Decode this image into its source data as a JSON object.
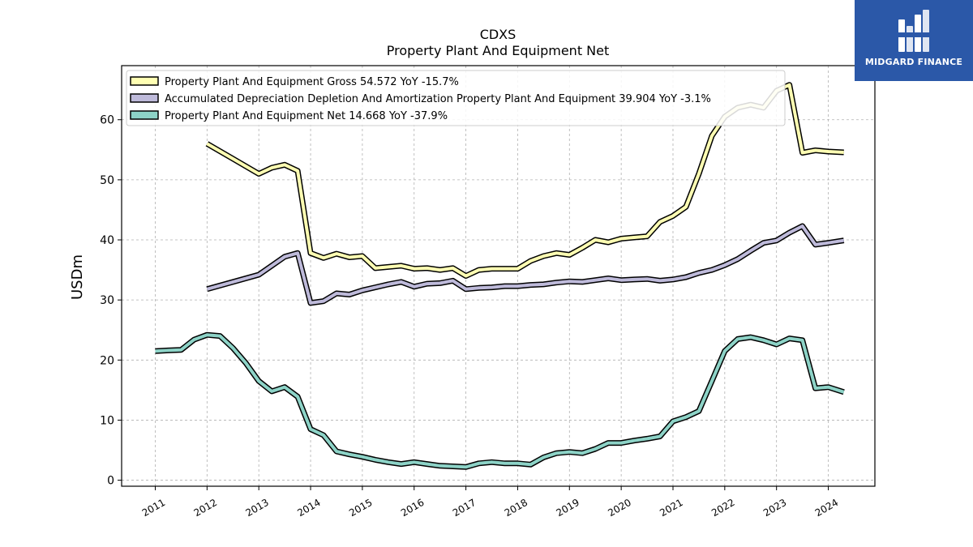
{
  "brand": {
    "name": "MIDGARD FINANCE",
    "color": "#2b58a8"
  },
  "chart_data": {
    "type": "line",
    "title": "CDXS",
    "subtitle": "Property Plant And Equipment Net",
    "ylabel": "USDm",
    "xlabel": "",
    "ylim": [
      -1,
      69
    ],
    "xlim": [
      2010.35,
      2024.9
    ],
    "yticks": [
      0,
      10,
      20,
      30,
      40,
      50,
      60
    ],
    "xticks": [
      2011,
      2012,
      2013,
      2014,
      2015,
      2016,
      2017,
      2018,
      2019,
      2020,
      2021,
      2022,
      2023,
      2024
    ],
    "grid": true,
    "legend_position": "top-left",
    "series": [
      {
        "name": "Property Plant And Equipment Gross  54.572 YoY -15.7%",
        "color": "#ffffb3",
        "x": [
          2012.0,
          2012.5,
          2013.0,
          2013.25,
          2013.5,
          2013.75,
          2014.0,
          2014.25,
          2014.5,
          2014.75,
          2015.0,
          2015.25,
          2015.5,
          2015.75,
          2016.0,
          2016.25,
          2016.5,
          2016.75,
          2017.0,
          2017.25,
          2017.5,
          2017.75,
          2018.0,
          2018.25,
          2018.5,
          2018.75,
          2019.0,
          2019.25,
          2019.5,
          2019.75,
          2020.0,
          2020.25,
          2020.5,
          2020.75,
          2021.0,
          2021.25,
          2021.5,
          2021.75,
          2022.0,
          2022.25,
          2022.5,
          2022.75,
          2023.0,
          2023.25,
          2023.5,
          2023.75,
          2024.0,
          2024.3
        ],
        "y": [
          56.0,
          53.5,
          51.0,
          52.0,
          52.5,
          51.5,
          37.8,
          37.0,
          37.7,
          37.1,
          37.3,
          35.3,
          35.5,
          35.7,
          35.2,
          35.3,
          35.0,
          35.3,
          34.0,
          35.0,
          35.2,
          35.2,
          35.2,
          36.5,
          37.3,
          37.8,
          37.5,
          38.7,
          40.0,
          39.6,
          40.2,
          40.4,
          40.6,
          43.0,
          44.0,
          45.5,
          51.0,
          57.3,
          60.5,
          62.0,
          62.5,
          62.0,
          64.8,
          65.8,
          54.5,
          54.9,
          54.7,
          54.572
        ]
      },
      {
        "name": "Accumulated Depreciation Depletion And Amortization Property Plant And Equipment  39.904 YoY -3.1%",
        "color": "#bebada",
        "x": [
          2012.0,
          2012.5,
          2013.0,
          2013.25,
          2013.5,
          2013.75,
          2014.0,
          2014.25,
          2014.5,
          2014.75,
          2015.0,
          2015.25,
          2015.5,
          2015.75,
          2016.0,
          2016.25,
          2016.5,
          2016.75,
          2017.0,
          2017.25,
          2017.5,
          2017.75,
          2018.0,
          2018.25,
          2018.5,
          2018.75,
          2019.0,
          2019.25,
          2019.5,
          2019.75,
          2020.0,
          2020.25,
          2020.5,
          2020.75,
          2021.0,
          2021.25,
          2021.5,
          2021.75,
          2022.0,
          2022.25,
          2022.5,
          2022.75,
          2023.0,
          2023.25,
          2023.5,
          2023.75,
          2024.0,
          2024.3
        ],
        "y": [
          31.8,
          33.0,
          34.2,
          35.7,
          37.2,
          37.8,
          29.5,
          29.8,
          31.1,
          30.9,
          31.6,
          32.1,
          32.6,
          33.0,
          32.2,
          32.7,
          32.8,
          33.2,
          31.8,
          32.0,
          32.1,
          32.3,
          32.3,
          32.5,
          32.6,
          32.9,
          33.1,
          33.0,
          33.3,
          33.6,
          33.3,
          33.4,
          33.5,
          33.2,
          33.4,
          33.8,
          34.5,
          35.0,
          35.8,
          36.8,
          38.2,
          39.5,
          39.9,
          41.2,
          42.3,
          39.2,
          39.5,
          39.904
        ]
      },
      {
        "name": "Property Plant And Equipment Net  14.668 YoY -37.9%",
        "color": "#8dd3c7",
        "x": [
          2011.0,
          2011.25,
          2011.5,
          2011.75,
          2012.0,
          2012.25,
          2012.5,
          2012.75,
          2013.0,
          2013.25,
          2013.5,
          2013.75,
          2014.0,
          2014.25,
          2014.5,
          2014.75,
          2015.0,
          2015.25,
          2015.5,
          2015.75,
          2016.0,
          2016.25,
          2016.5,
          2016.75,
          2017.0,
          2017.25,
          2017.5,
          2017.75,
          2018.0,
          2018.25,
          2018.5,
          2018.75,
          2019.0,
          2019.25,
          2019.5,
          2019.75,
          2020.0,
          2020.25,
          2020.5,
          2020.75,
          2021.0,
          2021.25,
          2021.5,
          2021.75,
          2022.0,
          2022.25,
          2022.5,
          2022.75,
          2023.0,
          2023.25,
          2023.5,
          2023.75,
          2024.0,
          2024.3
        ],
        "y": [
          21.5,
          21.6,
          21.7,
          23.4,
          24.2,
          24.0,
          22.0,
          19.5,
          16.5,
          14.8,
          15.5,
          13.9,
          8.5,
          7.5,
          4.8,
          4.3,
          3.9,
          3.4,
          3.0,
          2.7,
          3.0,
          2.7,
          2.4,
          2.3,
          2.2,
          2.8,
          3.0,
          2.8,
          2.8,
          2.6,
          3.8,
          4.5,
          4.7,
          4.5,
          5.2,
          6.2,
          6.2,
          6.6,
          6.9,
          7.3,
          9.8,
          10.5,
          11.5,
          16.5,
          21.5,
          23.5,
          23.8,
          23.3,
          22.6,
          23.6,
          23.3,
          15.3,
          15.5,
          14.668
        ]
      }
    ]
  }
}
